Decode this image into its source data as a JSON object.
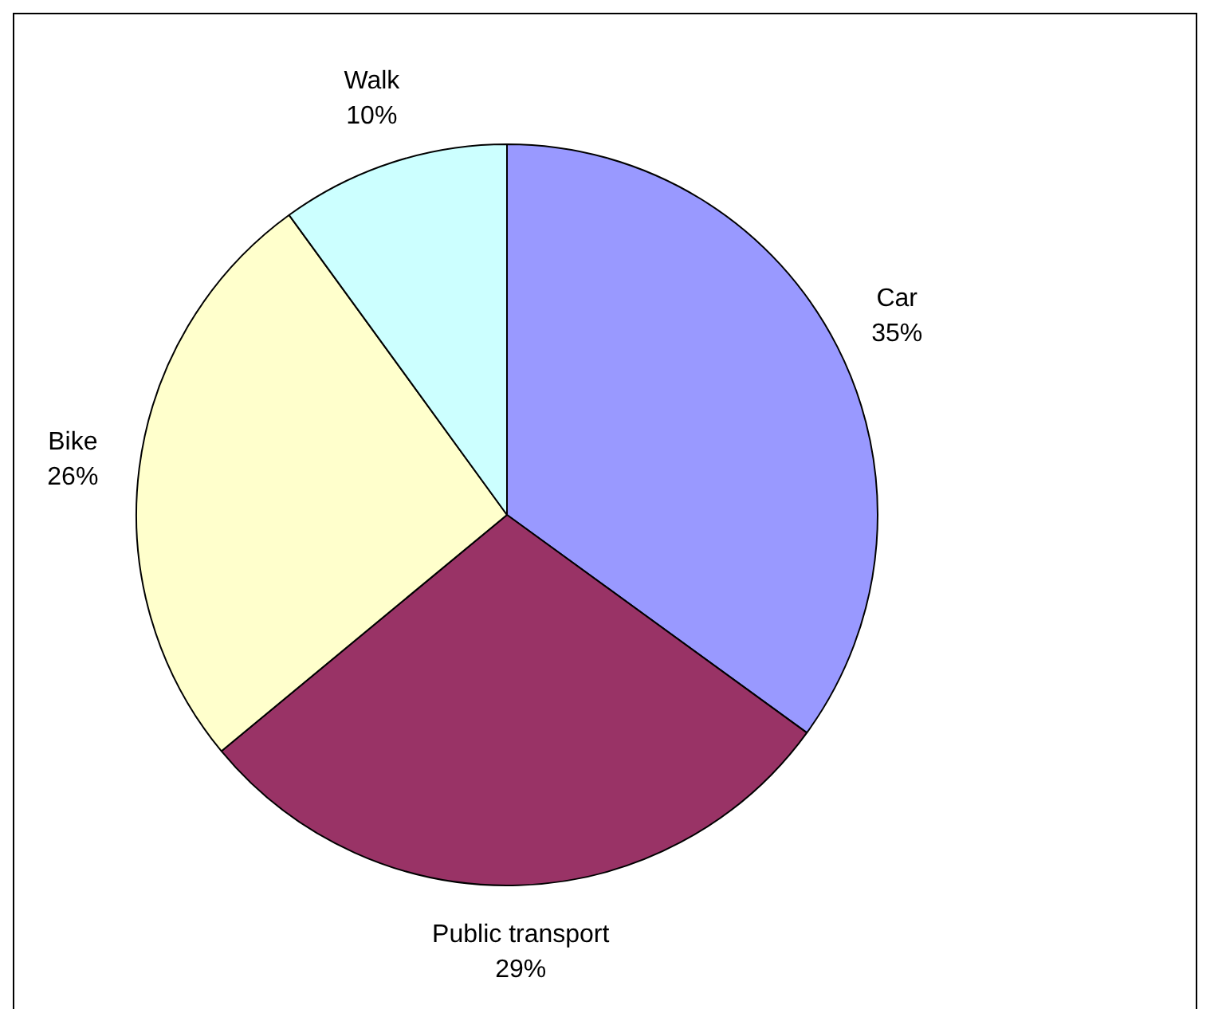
{
  "chart_data": {
    "type": "pie",
    "categories": [
      "Car",
      "Public transport",
      "Bike",
      "Walk"
    ],
    "values": [
      35,
      29,
      26,
      10
    ],
    "colors": [
      "#9999ff",
      "#993366",
      "#ffffcc",
      "#ccffff"
    ],
    "value_labels": [
      "35%",
      "29%",
      "26%",
      "10%"
    ],
    "legend": false
  }
}
